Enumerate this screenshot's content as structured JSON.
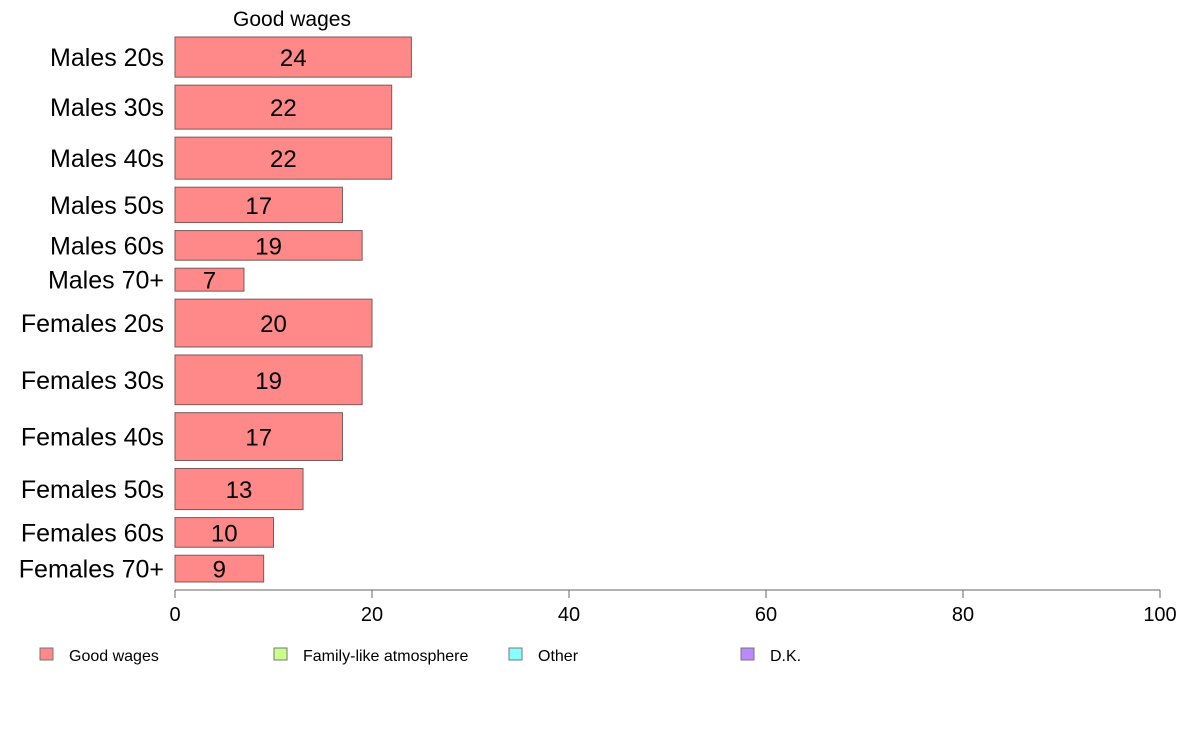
{
  "chart_data": {
    "type": "bar",
    "orientation": "horizontal",
    "title": "Good wages",
    "xlabel": "",
    "ylabel": "",
    "xlim": [
      0,
      100
    ],
    "xticks": [
      0,
      20,
      40,
      60,
      80,
      100
    ],
    "grid": false,
    "legend_position": "bottom",
    "categories": [
      "Males 20s",
      "Males 30s",
      "Males 40s",
      "Males 50s",
      "Males 60s",
      "Males 70+",
      "Females 20s",
      "Females 30s",
      "Females 40s",
      "Females 50s",
      "Females 60s",
      "Females 70+"
    ],
    "category_weights": [
      42,
      46,
      44,
      37,
      31,
      24,
      50,
      52,
      50,
      43,
      31,
      28
    ],
    "series": [
      {
        "name": "Good wages",
        "color": "#ff8888",
        "values": [
          24,
          22,
          22,
          17,
          19,
          7,
          20,
          19,
          17,
          13,
          10,
          9
        ]
      }
    ],
    "legend": [
      {
        "label": "Good wages",
        "color": "#ff8888"
      },
      {
        "label": "Family-like atmosphere",
        "color": "#c8ff88"
      },
      {
        "label": "Other",
        "color": "#88ffff"
      },
      {
        "label": "D.K.",
        "color": "#bb88ff"
      }
    ]
  }
}
